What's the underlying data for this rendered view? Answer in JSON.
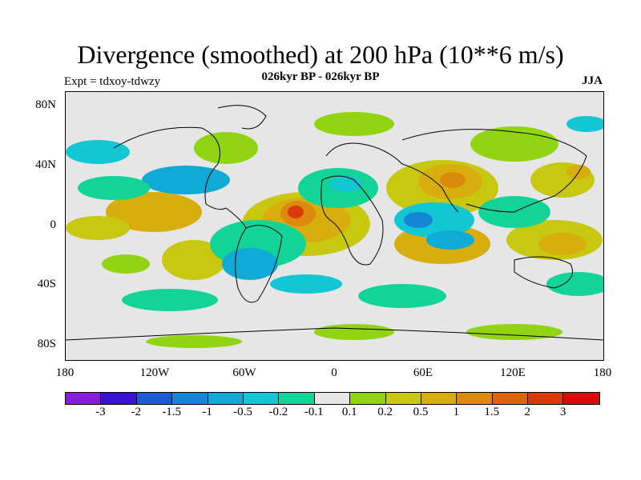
{
  "title": "Divergence (smoothed) at 200 hPa (10**6 m/s)",
  "subtitle": "026kyr BP - 026kyr BP",
  "experiment": "Expt = tdxoy-tdwzy",
  "season": "JJA",
  "lat_labels": [
    "80N",
    "40N",
    "0",
    "40S",
    "80S"
  ],
  "lon_labels": [
    "180",
    "120W",
    "60W",
    "0",
    "60E",
    "120E",
    "180"
  ],
  "colorbar": {
    "levels": [
      "-3",
      "-2",
      "-1.5",
      "-1",
      "-0.5",
      "-0.2",
      "-0.1",
      "0.1",
      "0.2",
      "0.5",
      "1",
      "1.5",
      "2",
      "3"
    ],
    "colors": [
      "#8a1ce0",
      "#3a12d6",
      "#1c5ad8",
      "#1486d6",
      "#10aad6",
      "#12c6d4",
      "#12d498",
      "#e6e6e6",
      "#90d412",
      "#c8c810",
      "#d8ae0e",
      "#dc8a0c",
      "#dc640a",
      "#da3a0a",
      "#d80c0c"
    ]
  },
  "icons": [
    "coastline-map"
  ]
}
